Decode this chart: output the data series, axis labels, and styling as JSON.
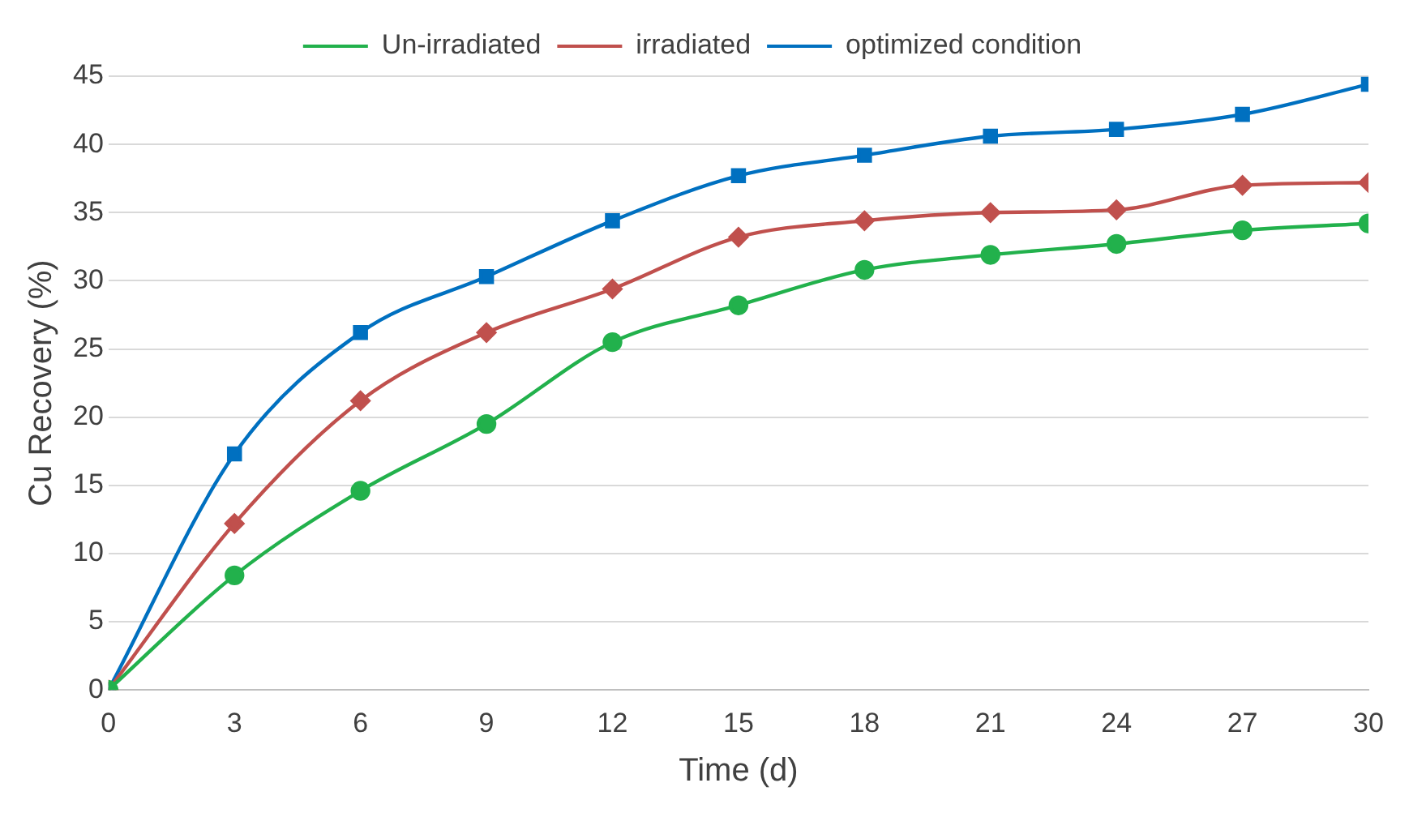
{
  "chart_data": {
    "type": "line",
    "xlabel": "Time (d)",
    "ylabel": "Cu Recovery (%)",
    "x": [
      0,
      3,
      6,
      9,
      12,
      15,
      18,
      21,
      24,
      27,
      30
    ],
    "series": [
      {
        "name": "Un-irradiated",
        "color": "#22b14c",
        "marker": "circle",
        "values": [
          0,
          8.4,
          14.6,
          19.5,
          25.5,
          28.2,
          30.8,
          31.9,
          32.7,
          33.7,
          34.2
        ]
      },
      {
        "name": "irradiated",
        "color": "#c0504d",
        "marker": "diamond",
        "values": [
          0,
          12.2,
          21.2,
          26.2,
          29.4,
          33.2,
          34.4,
          35.0,
          35.2,
          37.0,
          37.2
        ]
      },
      {
        "name": "optimized condition",
        "color": "#0070c0",
        "marker": "square",
        "values": [
          0,
          17.3,
          26.2,
          30.3,
          34.4,
          37.7,
          39.2,
          40.6,
          41.1,
          42.2,
          44.4
        ]
      }
    ],
    "xlim": [
      0,
      30
    ],
    "xticks": [
      0,
      3,
      6,
      9,
      12,
      15,
      18,
      21,
      24,
      27,
      30
    ],
    "ylim": [
      0,
      45
    ],
    "yticks": [
      0,
      5,
      10,
      15,
      20,
      25,
      30,
      35,
      40,
      45
    ],
    "grid": "y",
    "legend": "top",
    "line_style": "solid"
  }
}
